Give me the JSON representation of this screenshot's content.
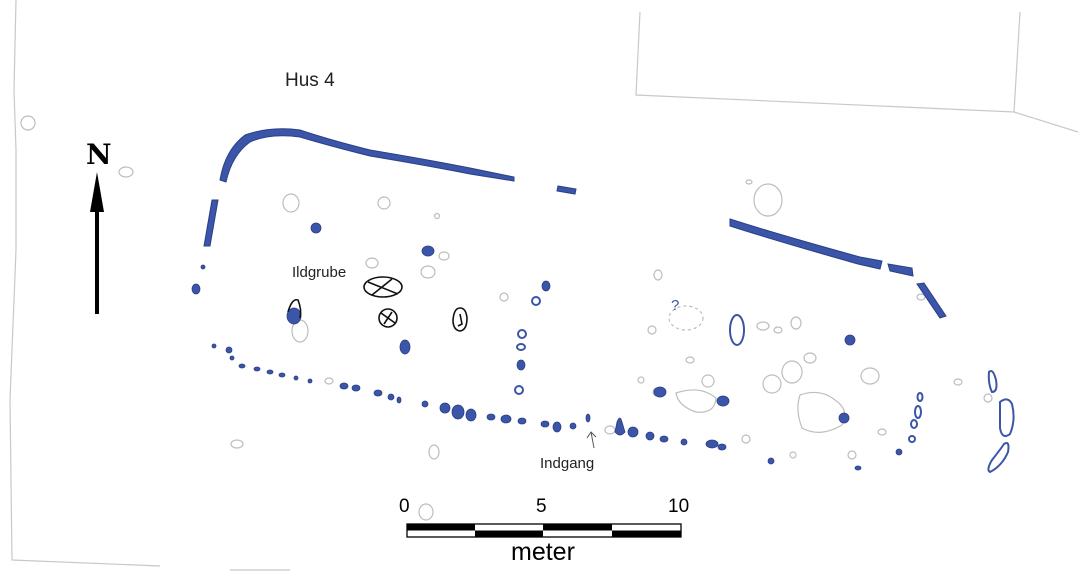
{
  "map": {
    "title": "Hus 4",
    "north_label": "N",
    "labels": {
      "fire_pit": "Ildgrube",
      "entrance": "Indgang",
      "uncertain": "?"
    },
    "scale_bar": {
      "ticks": [
        "0",
        "5",
        "10"
      ],
      "unit": "meter"
    },
    "colors": {
      "house_features": "#3b55a8",
      "other_features": "#bdbdbd",
      "background": "#ffffff",
      "outline": "#000000"
    }
  }
}
